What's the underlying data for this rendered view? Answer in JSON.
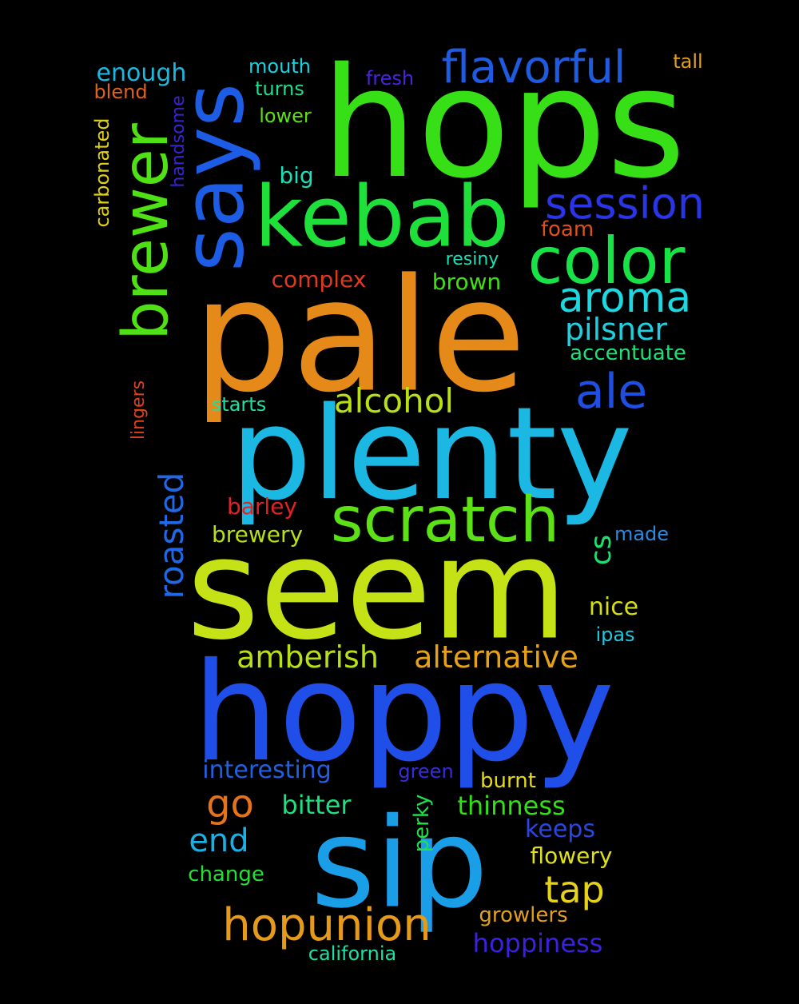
{
  "words": [
    {
      "text": "hops",
      "color": "#37e016"
    },
    {
      "text": "pale",
      "color": "#e58a19"
    },
    {
      "text": "plenty",
      "color": "#1ab8e2"
    },
    {
      "text": "seem",
      "color": "#c5e216"
    },
    {
      "text": "hoppy",
      "color": "#1f4ee8"
    },
    {
      "text": "sip",
      "color": "#1b9ee8"
    },
    {
      "text": "says",
      "color": "#1d5de6"
    },
    {
      "text": "kebab",
      "color": "#1fe03a"
    },
    {
      "text": "brewer",
      "color": "#4fe016"
    },
    {
      "text": "color",
      "color": "#17e246"
    },
    {
      "text": "scratch",
      "color": "#5ce016"
    },
    {
      "text": "flavorful",
      "color": "#1f5be0"
    },
    {
      "text": "session",
      "color": "#2a35e6"
    },
    {
      "text": "aroma",
      "color": "#1dd8e0"
    },
    {
      "text": "ale",
      "color": "#1f4fe0"
    },
    {
      "text": "pilsner",
      "color": "#1ed0e0"
    },
    {
      "text": "alcohol",
      "color": "#b8e016"
    },
    {
      "text": "hopunion",
      "color": "#e59a19"
    },
    {
      "text": "roasted",
      "color": "#2168e6"
    },
    {
      "text": "alternative",
      "color": "#e5a219"
    },
    {
      "text": "amberish",
      "color": "#b8e016"
    },
    {
      "text": "go",
      "color": "#e57319"
    },
    {
      "text": "end",
      "color": "#19b0e5"
    },
    {
      "text": "tap",
      "color": "#e5d219"
    },
    {
      "text": "interesting",
      "color": "#2160e0"
    },
    {
      "text": "bitter",
      "color": "#1de07e"
    },
    {
      "text": "thinness",
      "color": "#32e016"
    },
    {
      "text": "keeps",
      "color": "#2c46e0"
    },
    {
      "text": "flowery",
      "color": "#e0e016"
    },
    {
      "text": "hoppiness",
      "color": "#3a22e0"
    },
    {
      "text": "california",
      "color": "#1de0a8"
    },
    {
      "text": "growlers",
      "color": "#e5a019"
    },
    {
      "text": "burnt",
      "color": "#e5d919"
    },
    {
      "text": "green",
      "color": "#3a2ae0"
    },
    {
      "text": "perky",
      "color": "#22e04e"
    },
    {
      "text": "change",
      "color": "#22e035"
    },
    {
      "text": "cs",
      "color": "#1de06d"
    },
    {
      "text": "made",
      "color": "#2a8ae0"
    },
    {
      "text": "nice",
      "color": "#d3e016"
    },
    {
      "text": "ipas",
      "color": "#1dc9e0"
    },
    {
      "text": "barley",
      "color": "#e02222"
    },
    {
      "text": "brewery",
      "color": "#b8e016"
    },
    {
      "text": "starts",
      "color": "#1de0a4"
    },
    {
      "text": "complex",
      "color": "#e03a1d"
    },
    {
      "text": "brown",
      "color": "#40e016"
    },
    {
      "text": "resiny",
      "color": "#1de0b6"
    },
    {
      "text": "foam",
      "color": "#e0501d"
    },
    {
      "text": "accentuate",
      "color": "#1de07a"
    },
    {
      "text": "big",
      "color": "#1de0b8"
    },
    {
      "text": "lower",
      "color": "#5ce016"
    },
    {
      "text": "mouth",
      "color": "#1dd0e0"
    },
    {
      "text": "turns",
      "color": "#1de08c"
    },
    {
      "text": "fresh",
      "color": "#4a22e0"
    },
    {
      "text": "tall",
      "color": "#e5a019"
    },
    {
      "text": "enough",
      "color": "#1db8e0"
    },
    {
      "text": "blend",
      "color": "#e0621d"
    },
    {
      "text": "handsome",
      "color": "#3a22d8"
    },
    {
      "text": "carbonated",
      "color": "#e0d016"
    },
    {
      "text": "lingers",
      "color": "#e0421d"
    }
  ]
}
